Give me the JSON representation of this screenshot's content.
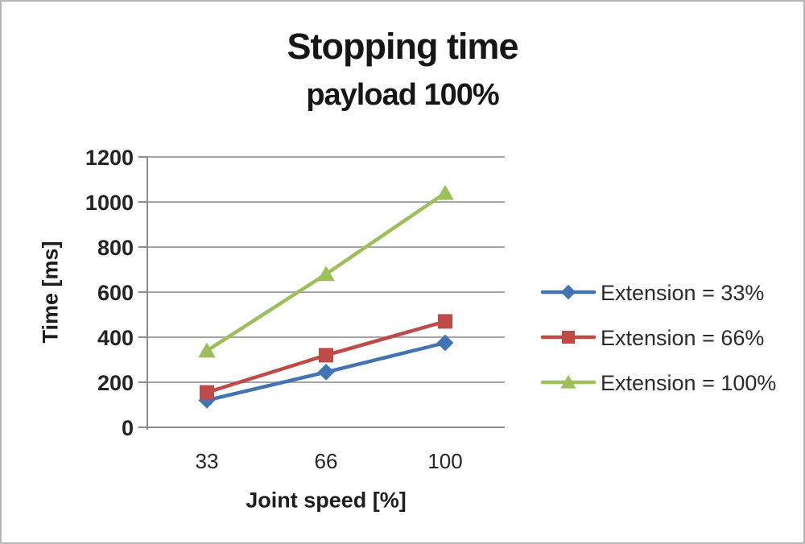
{
  "page": {
    "background_color": "#ffffff",
    "border_color": "#b5b5b5"
  },
  "chart_data": {
    "type": "line",
    "title": "Stopping time",
    "subtitle": "payload 100%",
    "xlabel": "Joint speed [%]",
    "ylabel": "Time [ms]",
    "categories": [
      "33",
      "66",
      "100"
    ],
    "y_ticks": [
      0,
      200,
      400,
      600,
      800,
      1000,
      1200
    ],
    "ylim": [
      0,
      1200
    ],
    "grid": "horizontal",
    "legend_position": "right",
    "gridline_color": "#a6a6a6",
    "axis_color": "#8c8c8c",
    "tick_text_color": "#242424",
    "series": [
      {
        "name": "Extension = 33%",
        "marker": "diamond",
        "color": "#4273b4",
        "values": [
          120,
          245,
          375
        ]
      },
      {
        "name": "Extension = 66%",
        "marker": "square",
        "color": "#be4b48",
        "values": [
          155,
          320,
          470
        ]
      },
      {
        "name": "Extension = 100%",
        "marker": "triangle",
        "color": "#9cbf5a",
        "values": [
          340,
          680,
          1040
        ]
      }
    ]
  }
}
